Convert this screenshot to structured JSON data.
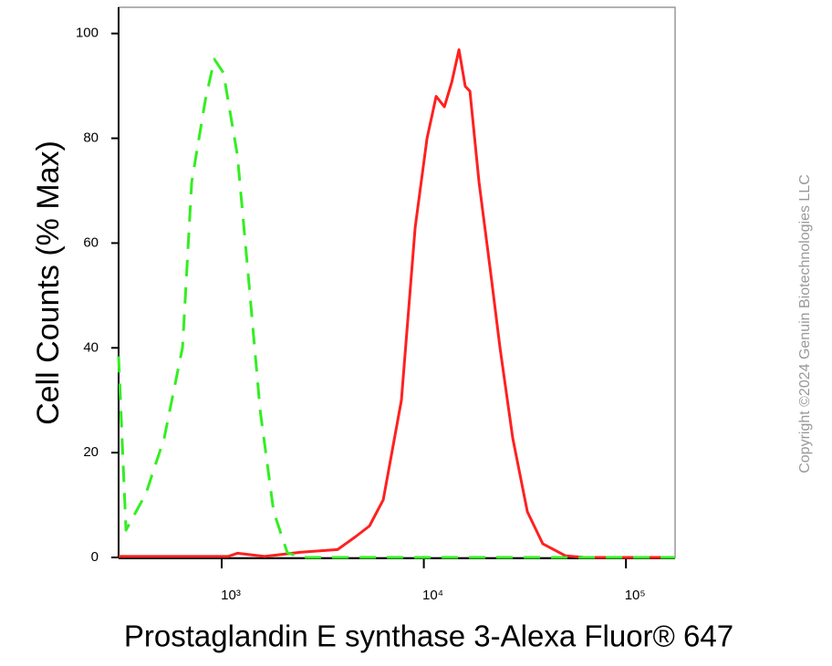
{
  "chart_data": {
    "type": "line",
    "x_label": "Prostaglandin E synthase 3-Alexa Fluor® 647",
    "y_label": "Cell Counts (% Max)",
    "watermark": "Copyright ©2024 Genuin Biotechnologies LLC",
    "xscale": "log",
    "xlim": [
      309,
      175000
    ],
    "ylim": [
      0,
      105
    ],
    "xticks": [
      {
        "value": 1000,
        "label": "10³"
      },
      {
        "value": 10000,
        "label": "10⁴"
      },
      {
        "value": 100000,
        "label": "10⁵"
      }
    ],
    "yticks": [
      0,
      20,
      40,
      60,
      80,
      100
    ],
    "series": [
      {
        "color": "#ff2020",
        "dashed": false,
        "x": [
          309,
          1076,
          1195,
          1630,
          2472,
          3742,
          4610,
          5385,
          6297,
          7748,
          9060,
          10370,
          11510,
          12640,
          13740,
          14930,
          16040,
          16900,
          18750,
          21460,
          23810,
          27550,
          32540,
          38800,
          50350,
          61940,
          175000
        ],
        "values": [
          0.2,
          0.2,
          0.8,
          0.2,
          1,
          1.5,
          4,
          6,
          11,
          30,
          63,
          80,
          88,
          86,
          90.7,
          96.9,
          89.9,
          89,
          71.6,
          54,
          40,
          22.7,
          8.7,
          2.6,
          0.3,
          0,
          0
        ]
      },
      {
        "color": "#33ee22",
        "dashed": true,
        "x": [
          309,
          336,
          422,
          519,
          640,
          710,
          830,
          920,
          1020,
          1195,
          1352,
          1550,
          1808,
          2114,
          2472,
          14450,
          175000
        ],
        "values": [
          38.4,
          5.2,
          12.2,
          22.7,
          40.1,
          71.6,
          87.3,
          95.1,
          92.5,
          76.8,
          54.1,
          28,
          8.7,
          0.9,
          0,
          0,
          0
        ]
      }
    ]
  }
}
